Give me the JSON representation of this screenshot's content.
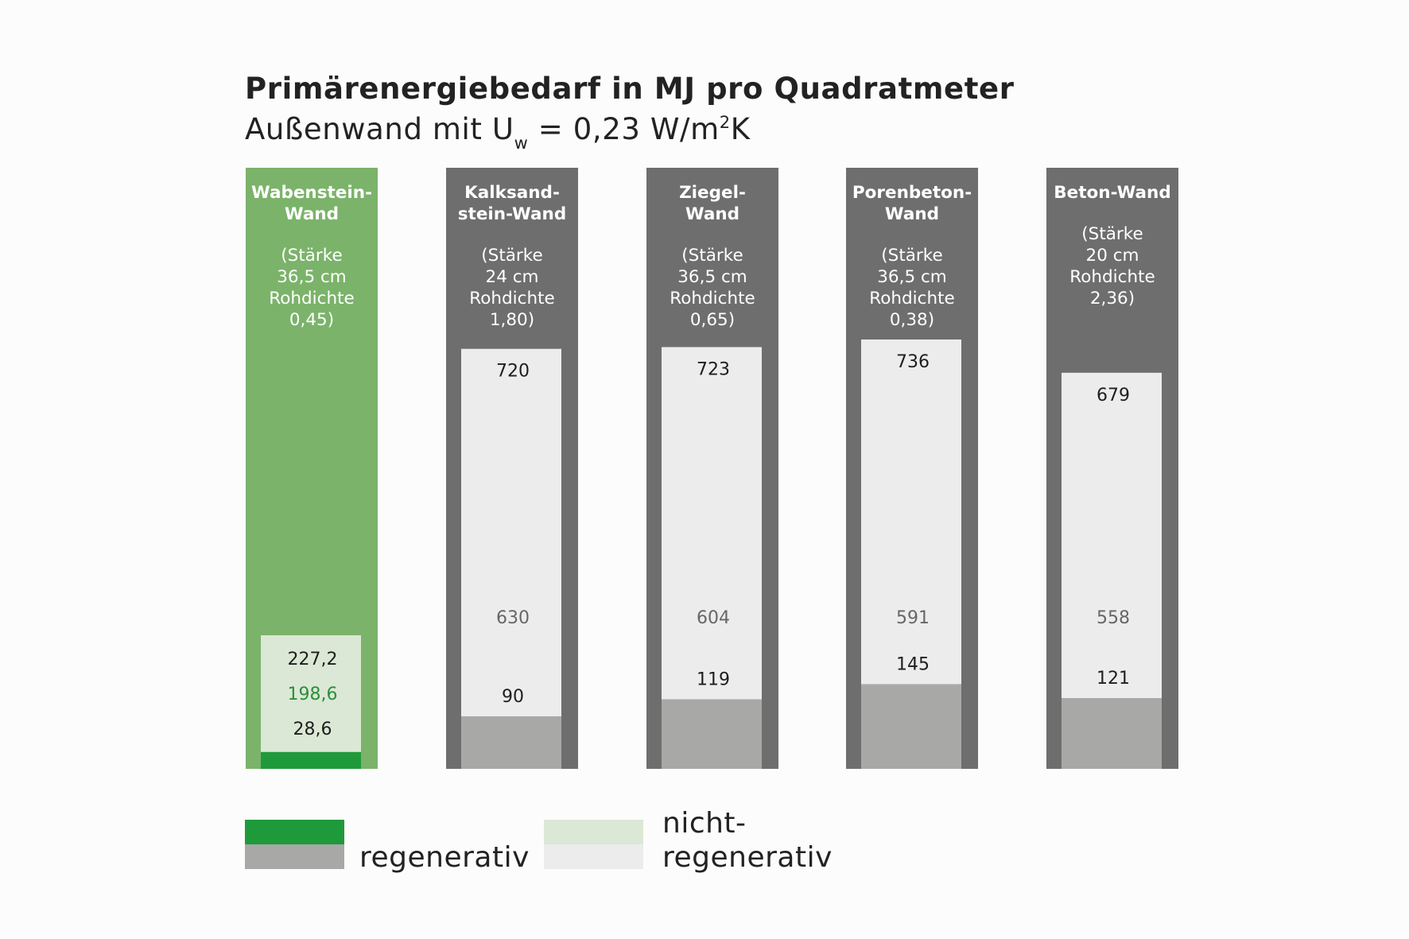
{
  "title": {
    "line1": "Primärenergiebedarf in MJ pro Quadratmeter",
    "line2_prefix": "Außenwand mit U",
    "line2_sub": "w",
    "line2_middle": " = 0,23 W/m",
    "line2_sup": "2",
    "line2_suffix": "K"
  },
  "chart_data": {
    "type": "bar",
    "title": "Primärenergiebedarf in MJ pro Quadratmeter",
    "subtitle": "Außenwand mit Uw = 0,23 W/m²K",
    "categories": [
      "Wabenstein-Wand",
      "Kalksandstein-Wand",
      "Ziegel-Wand",
      "Porenbeton-Wand",
      "Beton-Wand"
    ],
    "series": [
      {
        "name": "regenerativ",
        "values": [
          28.6,
          90,
          119,
          145,
          121
        ]
      },
      {
        "name": "nicht-regenerativ",
        "values": [
          198.6,
          630,
          604,
          591,
          558
        ]
      }
    ],
    "totals": [
      227.2,
      720,
      723,
      736,
      679
    ],
    "columns": [
      {
        "name_lines": [
          "Wabenstein-",
          "Wand"
        ],
        "spec_lines": [
          "(Stärke",
          "36,5 cm",
          "Rohdichte",
          "0,45)"
        ],
        "total_label": "227,2",
        "nonregen_label": "198,6",
        "regen_label": "28,6",
        "highlight": true
      },
      {
        "name_lines": [
          "Kalksand-",
          "stein-Wand"
        ],
        "spec_lines": [
          "(Stärke",
          "24 cm",
          "Rohdichte",
          "1,80)"
        ],
        "total_label": "720",
        "nonregen_label": "630",
        "regen_label": "90",
        "highlight": false
      },
      {
        "name_lines": [
          "Ziegel-",
          "Wand"
        ],
        "spec_lines": [
          "(Stärke",
          "36,5 cm",
          "Rohdichte",
          "0,65)"
        ],
        "total_label": "723",
        "nonregen_label": "604",
        "regen_label": "119",
        "highlight": false
      },
      {
        "name_lines": [
          "Porenbeton-",
          "Wand"
        ],
        "spec_lines": [
          "(Stärke",
          "36,5 cm",
          "Rohdichte",
          "0,38)"
        ],
        "total_label": "736",
        "nonregen_label": "591",
        "regen_label": "145",
        "highlight": false
      },
      {
        "name_lines": [
          "Beton-Wand"
        ],
        "spec_lines": [
          "(Stärke",
          "20 cm",
          "Rohdichte",
          "2,36)"
        ],
        "total_label": "679",
        "nonregen_label": "558",
        "regen_label": "121",
        "highlight": false
      }
    ],
    "legend": {
      "placement": "bottom-left",
      "items": [
        {
          "label": "regenerativ",
          "colors": [
            "#1f9a3b",
            "#a8a8a7"
          ]
        },
        {
          "label_lines": [
            "nicht-",
            "regenerativ"
          ],
          "colors": [
            "#dbe8d5",
            "#ececec"
          ]
        }
      ]
    },
    "colors": {
      "highlight_column": "#7bb36a",
      "column": "#6e6e6e",
      "highlight_nonregen": "#dbe8d5",
      "highlight_regen": "#1f9a3b",
      "nonregen": "#ececec",
      "regen": "#a8a8a7",
      "nonregen_label_highlight": "#2a8f3a",
      "nonregen_label": "#666666"
    }
  },
  "legend_labels": {
    "regen": "regenerativ",
    "nonregen_line1": "nicht-",
    "nonregen_line2": "regenerativ"
  }
}
